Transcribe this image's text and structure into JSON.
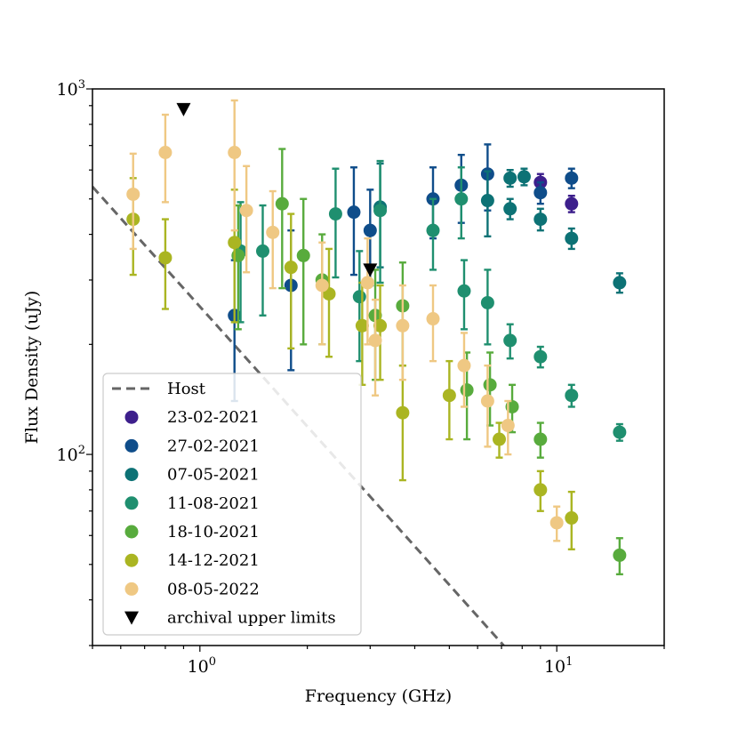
{
  "chart_data": {
    "type": "scatter",
    "title": "",
    "xlabel": "Frequency (GHz)",
    "ylabel": "Flux Density (uJy)",
    "x_scale": "log",
    "y_scale": "log",
    "xlim": [
      0.5,
      20
    ],
    "ylim": [
      30,
      1000
    ],
    "x_tick_labels": [
      {
        "value": 1,
        "base": "10",
        "exp": "0"
      },
      {
        "value": 10,
        "base": "10",
        "exp": "1"
      }
    ],
    "y_tick_labels": [
      {
        "value": 100,
        "base": "10",
        "exp": "2"
      },
      {
        "value": 1000,
        "base": "10",
        "exp": "3"
      }
    ],
    "legend_position": "lower-left",
    "host": {
      "name": "Host",
      "color": "#666666",
      "points": [
        [
          0.5,
          540
        ],
        [
          7.1,
          30
        ]
      ]
    },
    "series": [
      {
        "name": "23-02-2021",
        "color": "#3d1f8c",
        "points": [
          [
            9.0,
            555,
            30
          ],
          [
            11.0,
            485,
            25
          ]
        ]
      },
      {
        "name": "27-02-2021",
        "color": "#0f4d8a",
        "points": [
          [
            1.25,
            240,
            100
          ],
          [
            1.8,
            290,
            120
          ],
          [
            2.7,
            460,
            150
          ],
          [
            3.0,
            410,
            120
          ],
          [
            4.5,
            500,
            110
          ],
          [
            5.4,
            545,
            115
          ],
          [
            6.4,
            585,
            120
          ],
          [
            9.0,
            520,
            35
          ],
          [
            11.0,
            570,
            35
          ]
        ]
      },
      {
        "name": "07-05-2021",
        "color": "#0d7275",
        "points": [
          [
            3.2,
            475,
            150
          ],
          [
            6.4,
            495,
            100
          ],
          [
            7.4,
            570,
            30
          ],
          [
            8.1,
            575,
            30
          ],
          [
            9.0,
            440,
            30
          ],
          [
            11.0,
            390,
            25
          ],
          [
            15.0,
            295,
            18
          ],
          [
            7.4,
            470,
            30
          ]
        ]
      },
      {
        "name": "11-08-2021",
        "color": "#1f8f6f",
        "points": [
          [
            1.3,
            360,
            130
          ],
          [
            1.5,
            360,
            120
          ],
          [
            2.4,
            455,
            150
          ],
          [
            2.8,
            270,
            90
          ],
          [
            3.2,
            465,
            170
          ],
          [
            4.5,
            410,
            90
          ],
          [
            5.4,
            500,
            110
          ],
          [
            5.5,
            280,
            60
          ],
          [
            6.4,
            260,
            60
          ],
          [
            7.4,
            205,
            22
          ],
          [
            9.0,
            185,
            12
          ],
          [
            11.0,
            145,
            10
          ],
          [
            15.0,
            115,
            6
          ]
        ]
      },
      {
        "name": "18-10-2021",
        "color": "#58ab3d",
        "points": [
          [
            1.28,
            350,
            130
          ],
          [
            1.7,
            485,
            200
          ],
          [
            1.95,
            350,
            150
          ],
          [
            2.2,
            300,
            100
          ],
          [
            3.1,
            240,
            80
          ],
          [
            3.7,
            255,
            80
          ],
          [
            5.6,
            150,
            40
          ],
          [
            6.5,
            155,
            35
          ],
          [
            7.5,
            135,
            20
          ],
          [
            9.0,
            110,
            12
          ],
          [
            15.0,
            53,
            6
          ]
        ]
      },
      {
        "name": "14-12-2021",
        "color": "#aab522",
        "points": [
          [
            0.65,
            440,
            130
          ],
          [
            0.8,
            345,
            95
          ],
          [
            1.25,
            380,
            150
          ],
          [
            1.8,
            325,
            130
          ],
          [
            2.3,
            275,
            90
          ],
          [
            2.85,
            225,
            70
          ],
          [
            3.2,
            225,
            65
          ],
          [
            3.7,
            130,
            45
          ],
          [
            5.0,
            145,
            35
          ],
          [
            6.9,
            110,
            12
          ],
          [
            9.0,
            80,
            10
          ],
          [
            11.0,
            67,
            12
          ]
        ]
      },
      {
        "name": "08-05-2022",
        "color": "#efc883",
        "points": [
          [
            0.65,
            515,
            150
          ],
          [
            0.8,
            670,
            180
          ],
          [
            1.25,
            670,
            260
          ],
          [
            1.35,
            465,
            150
          ],
          [
            1.6,
            405,
            120
          ],
          [
            2.2,
            290,
            90
          ],
          [
            2.95,
            295,
            95
          ],
          [
            3.1,
            205,
            60
          ],
          [
            3.7,
            225,
            65
          ],
          [
            4.5,
            235,
            55
          ],
          [
            5.5,
            175,
            40
          ],
          [
            6.4,
            140,
            35
          ],
          [
            7.3,
            120,
            20
          ],
          [
            10.0,
            65,
            7
          ]
        ]
      }
    ],
    "upper_limits": {
      "name": "archival upper limits",
      "color": "#000000",
      "points": [
        [
          0.9,
          880
        ],
        [
          3.0,
          320
        ]
      ]
    }
  }
}
